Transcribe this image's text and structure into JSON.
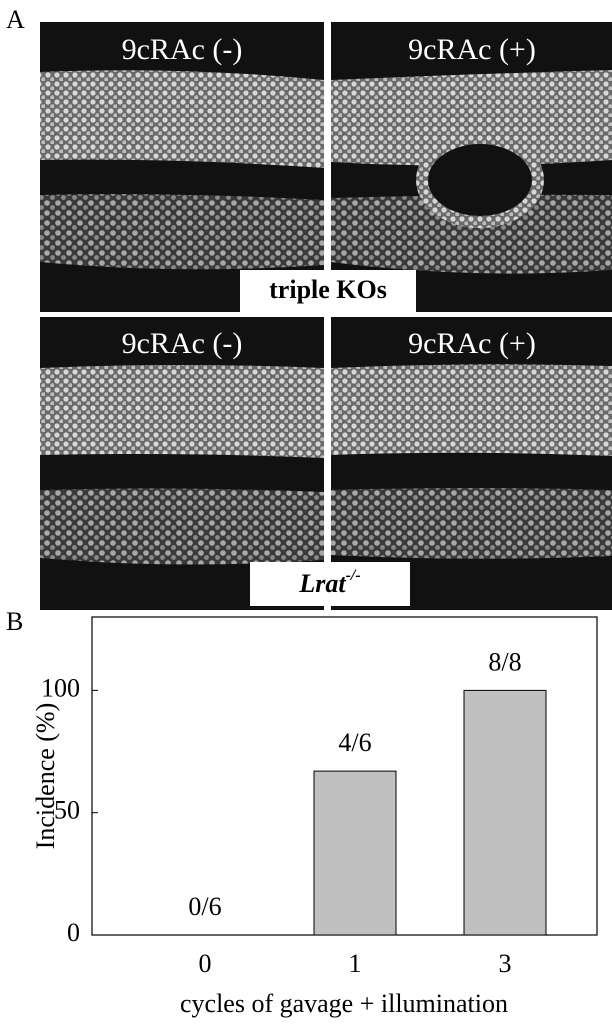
{
  "panel_a": {
    "label": "A",
    "top_left": "9cRAc (-)",
    "top_right": "9cRAc (+)",
    "top_caption": "triple KOs",
    "bottom_left": "9cRAc (-)",
    "bottom_right": "9cRAc (+)",
    "bottom_caption": {
      "text": "Lrat",
      "superscript": "-/-"
    }
  },
  "chart_data": {
    "type": "bar",
    "panel_label": "B",
    "categories": [
      "0",
      "1",
      "3"
    ],
    "values": [
      0,
      67,
      100
    ],
    "value_labels": [
      "0/6",
      "4/6",
      "8/8"
    ],
    "color": "#c0c0c0",
    "ylim": [
      0,
      130
    ],
    "yticks": [
      0,
      50,
      100
    ],
    "y_label": "Incidence (%)",
    "x_label": "cycles of gavage + illumination"
  }
}
